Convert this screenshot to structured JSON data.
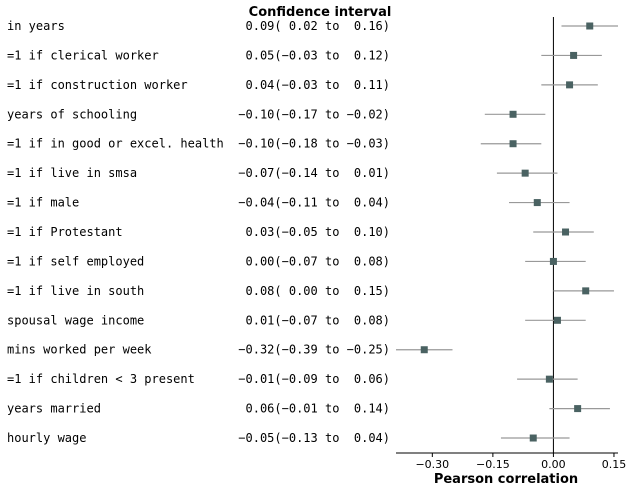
{
  "chart_data": {
    "type": "forest",
    "title": "Confidence interval",
    "xlabel": "Pearson correlation",
    "xlim": [
      -0.39,
      0.16
    ],
    "xticks": [
      -0.3,
      -0.15,
      0.0,
      0.15
    ],
    "xtick_labels": [
      "−0.30",
      "−0.15",
      "0.00",
      "0.15"
    ],
    "reference_line": 0,
    "marker_color": "#4a6262",
    "whisker_color": "#999999",
    "rows": [
      {
        "label": "in years",
        "estimate": 0.09,
        "lower": 0.02,
        "upper": 0.16,
        "ci_text": " 0.09( 0.02 to  0.16)"
      },
      {
        "label": "=1 if clerical worker",
        "estimate": 0.05,
        "lower": -0.03,
        "upper": 0.12,
        "ci_text": " 0.05(−0.03 to  0.12)"
      },
      {
        "label": "=1 if construction worker",
        "estimate": 0.04,
        "lower": -0.03,
        "upper": 0.11,
        "ci_text": " 0.04(−0.03 to  0.11)"
      },
      {
        "label": "years of schooling",
        "estimate": -0.1,
        "lower": -0.17,
        "upper": -0.02,
        "ci_text": "−0.10(−0.17 to −0.02)"
      },
      {
        "label": "=1 if in good or excel. health",
        "estimate": -0.1,
        "lower": -0.18,
        "upper": -0.03,
        "ci_text": "−0.10(−0.18 to −0.03)"
      },
      {
        "label": "=1 if live in smsa",
        "estimate": -0.07,
        "lower": -0.14,
        "upper": 0.01,
        "ci_text": "−0.07(−0.14 to  0.01)"
      },
      {
        "label": "=1 if male",
        "estimate": -0.04,
        "lower": -0.11,
        "upper": 0.04,
        "ci_text": "−0.04(−0.11 to  0.04)"
      },
      {
        "label": "=1 if Protestant",
        "estimate": 0.03,
        "lower": -0.05,
        "upper": 0.1,
        "ci_text": " 0.03(−0.05 to  0.10)"
      },
      {
        "label": "=1 if self employed",
        "estimate": 0.0,
        "lower": -0.07,
        "upper": 0.08,
        "ci_text": " 0.00(−0.07 to  0.08)"
      },
      {
        "label": "=1 if live in south",
        "estimate": 0.08,
        "lower": 0.0,
        "upper": 0.15,
        "ci_text": " 0.08( 0.00 to  0.15)"
      },
      {
        "label": "spousal wage income",
        "estimate": 0.01,
        "lower": -0.07,
        "upper": 0.08,
        "ci_text": " 0.01(−0.07 to  0.08)"
      },
      {
        "label": "mins worked per week",
        "estimate": -0.32,
        "lower": -0.39,
        "upper": -0.25,
        "ci_text": "−0.32(−0.39 to −0.25)"
      },
      {
        "label": "=1 if children < 3 present",
        "estimate": -0.01,
        "lower": -0.09,
        "upper": 0.06,
        "ci_text": "−0.01(−0.09 to  0.06)"
      },
      {
        "label": "years married",
        "estimate": 0.06,
        "lower": -0.01,
        "upper": 0.14,
        "ci_text": " 0.06(−0.01 to  0.14)"
      },
      {
        "label": "hourly wage",
        "estimate": -0.05,
        "lower": -0.13,
        "upper": 0.04,
        "ci_text": "−0.05(−0.13 to  0.04)"
      }
    ]
  }
}
